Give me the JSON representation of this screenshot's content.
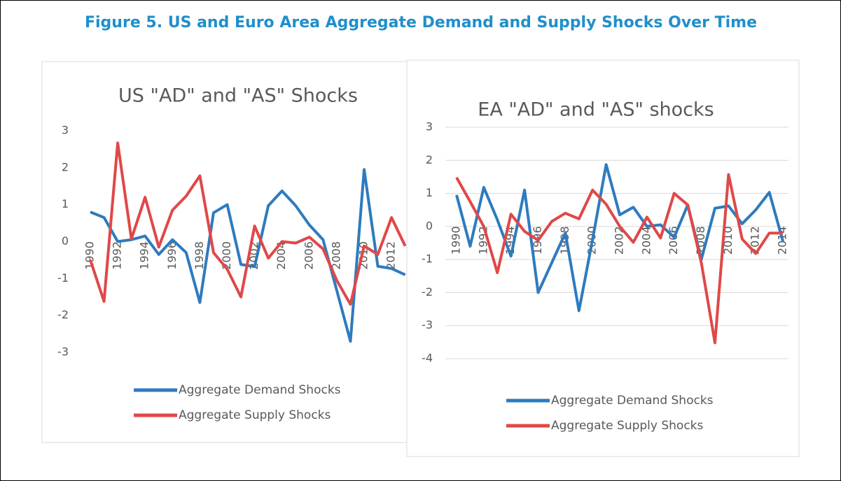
{
  "title": "Figure 5. US and Euro Area Aggregate Demand and Supply Shocks Over Time",
  "chart_data": [
    {
      "type": "line",
      "title": "US \"AD\" and \"AS\" Shocks",
      "categories": [
        "1990",
        null,
        "1992",
        null,
        "1994",
        null,
        "1996",
        null,
        "1998",
        null,
        "2000",
        null,
        "2002",
        null,
        "2004",
        null,
        "2006",
        null,
        "2008",
        null,
        "2010",
        null,
        "2012",
        null
      ],
      "series": [
        {
          "name": "Aggregate Demand Shocks",
          "color": "#2e7bbf",
          "values": [
            0.8,
            0.65,
            0.0,
            0.05,
            0.15,
            -0.35,
            0.05,
            -0.3,
            -1.65,
            0.78,
            1.0,
            -0.62,
            -0.68,
            0.97,
            1.37,
            0.97,
            0.45,
            0.05,
            -1.32,
            -2.7,
            1.95,
            -0.67,
            -0.73,
            -0.9
          ]
        },
        {
          "name": "Aggregate Supply Shocks",
          "color": "#e04848",
          "values": [
            -0.5,
            -1.62,
            2.67,
            0.07,
            1.2,
            -0.15,
            0.85,
            1.23,
            1.78,
            -0.3,
            -0.75,
            -1.5,
            0.42,
            -0.45,
            0.0,
            -0.04,
            0.12,
            -0.2,
            -1.05,
            -1.7,
            -0.12,
            -0.35,
            0.65,
            -0.12
          ]
        }
      ],
      "ylim": [
        -3,
        3
      ],
      "yticks": [
        -3,
        -2,
        -1,
        0,
        1,
        2,
        3
      ],
      "grid": false
    },
    {
      "type": "line",
      "title": "EA \"AD\" and \"AS\" shocks",
      "categories": [
        "1990",
        null,
        "1992",
        null,
        "1994",
        null,
        "1996",
        null,
        "1998",
        null,
        "2000",
        null,
        "2002",
        null,
        "2004",
        null,
        "2006",
        null,
        "2008",
        null,
        "2010",
        null,
        "2012",
        null,
        "2014"
      ],
      "series": [
        {
          "name": "Aggregate Demand Shocks",
          "color": "#2e7bbf",
          "values": [
            0.95,
            -0.6,
            1.18,
            0.2,
            -0.9,
            1.1,
            -2.0,
            -1.1,
            -0.2,
            -2.55,
            -0.4,
            1.87,
            0.35,
            0.58,
            0.0,
            0.05,
            -0.33,
            0.65,
            -1.0,
            0.55,
            0.62,
            0.08,
            0.5,
            1.03,
            -0.45
          ]
        },
        {
          "name": "Aggregate Supply Shocks",
          "color": "#e04848",
          "values": [
            1.48,
            0.75,
            0.0,
            -1.4,
            0.37,
            -0.15,
            -0.42,
            0.15,
            0.4,
            0.23,
            1.1,
            0.67,
            0.0,
            -0.48,
            0.28,
            -0.35,
            1.0,
            0.65,
            -1.1,
            -3.52,
            1.57,
            -0.38,
            -0.82,
            -0.2,
            -0.2
          ]
        }
      ],
      "ylim": [
        -4,
        3
      ],
      "yticks": [
        -4,
        -3,
        -2,
        -1,
        0,
        1,
        2,
        3
      ],
      "grid": true
    }
  ]
}
